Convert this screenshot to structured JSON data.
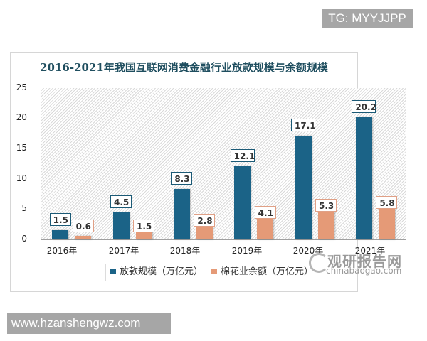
{
  "watermarks": {
    "top": "TG: MYYJJPP",
    "bottom": "www.hzanshengwz.com",
    "logo_cn": "观研报告网",
    "logo_en": "chinabaogao.com"
  },
  "colors": {
    "series1": "#1b6387",
    "series2": "#e59a77",
    "title": "#1f4e5f"
  },
  "y_ticks": [
    "25",
    "20",
    "15",
    "10",
    "5",
    "0"
  ],
  "x_ticks": [
    "2016年",
    "2017年",
    "2018年",
    "2019年",
    "2020年",
    "2021年"
  ],
  "legend": [
    "放款规模（万亿元）",
    "棉花业余额（万亿元）"
  ],
  "labels": {
    "s1": [
      "1.5",
      "4.5",
      "8.3",
      "12.1",
      "17.1",
      "20.2"
    ],
    "s2": [
      "0.6",
      "1.5",
      "2.8",
      "4.1",
      "5.3",
      "5.8"
    ]
  },
  "chart_data": {
    "type": "bar",
    "title": "2016-2021年我国互联网消费金融行业放款规模与余额规模",
    "categories": [
      "2016年",
      "2017年",
      "2018年",
      "2019年",
      "2020年",
      "2021年"
    ],
    "series": [
      {
        "name": "放款规模（万亿元）",
        "values": [
          1.5,
          4.5,
          8.3,
          12.1,
          17.1,
          20.2
        ],
        "color": "#1b6387"
      },
      {
        "name": "棉花业余额（万亿元）",
        "values": [
          0.6,
          1.5,
          2.8,
          4.1,
          5.3,
          5.8
        ],
        "color": "#e59a77"
      }
    ],
    "xlabel": "",
    "ylabel": "",
    "ylim": [
      0,
      25
    ],
    "yticks": [
      0,
      5,
      10,
      15,
      20,
      25
    ],
    "grid": false,
    "legend_position": "bottom",
    "data_labels": true
  }
}
